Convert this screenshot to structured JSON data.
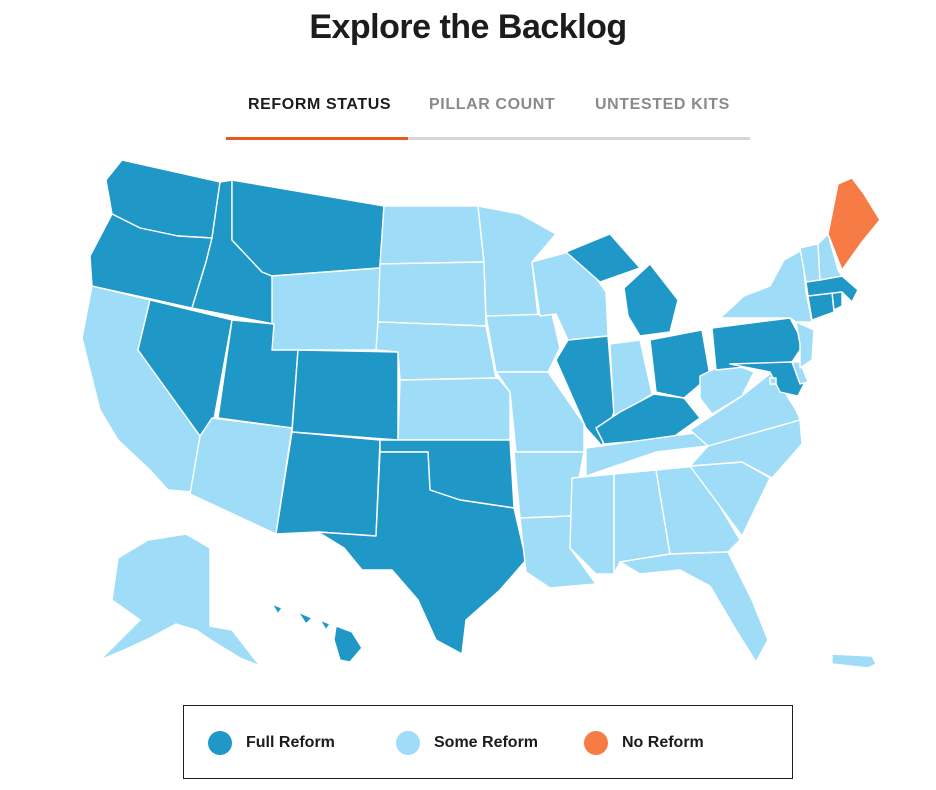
{
  "page": {
    "title": "Explore the Backlog"
  },
  "tabs": [
    {
      "label": "REFORM STATUS",
      "active": true
    },
    {
      "label": "PILLAR COUNT",
      "active": false
    },
    {
      "label": "UNTESTED KITS",
      "active": false
    }
  ],
  "colors": {
    "full_reform": "#1f97c7",
    "some_reform": "#9edcf7",
    "no_reform": "#f77b44",
    "accent": "#e85a1f"
  },
  "legend": [
    {
      "label": "Full Reform",
      "status": "full"
    },
    {
      "label": "Some Reform",
      "status": "some"
    },
    {
      "label": "No Reform",
      "status": "none"
    }
  ],
  "map": {
    "states": {
      "WA": "full",
      "OR": "full",
      "CA": "some",
      "NV": "full",
      "ID": "full",
      "MT": "full",
      "WY": "some",
      "UT": "full",
      "AZ": "some",
      "CO": "full",
      "NM": "full",
      "ND": "some",
      "SD": "some",
      "NE": "some",
      "KS": "some",
      "OK": "full",
      "TX": "full",
      "MN": "some",
      "IA": "some",
      "MO": "some",
      "AR": "some",
      "LA": "some",
      "WI": "some",
      "IL": "full",
      "MI": "full",
      "IN": "some",
      "OH": "full",
      "KY": "full",
      "TN": "some",
      "MS": "some",
      "AL": "some",
      "GA": "some",
      "FL": "some",
      "SC": "some",
      "NC": "some",
      "VA": "some",
      "WV": "some",
      "PA": "full",
      "NY": "some",
      "VT": "some",
      "NH": "some",
      "ME": "none",
      "MA": "full",
      "RI": "full",
      "CT": "full",
      "NJ": "some",
      "DE": "some",
      "MD": "full",
      "DC": "some",
      "AK": "some",
      "HI": "full",
      "PR": "some"
    }
  }
}
